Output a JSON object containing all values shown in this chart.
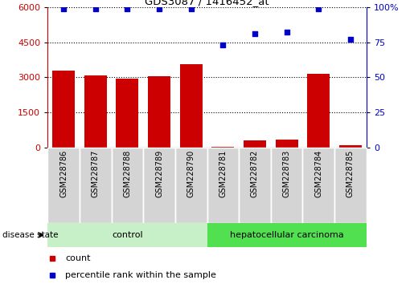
{
  "title": "GDS3087 / 1416452_at",
  "samples": [
    "GSM228786",
    "GSM228787",
    "GSM228788",
    "GSM228789",
    "GSM228790",
    "GSM228781",
    "GSM228782",
    "GSM228783",
    "GSM228784",
    "GSM228785"
  ],
  "counts": [
    3300,
    3100,
    2950,
    3050,
    3550,
    30,
    300,
    350,
    3150,
    100
  ],
  "percentiles": [
    99,
    99,
    99,
    99,
    99,
    73,
    81,
    82,
    99,
    77
  ],
  "bar_color": "#cc0000",
  "dot_color": "#0000cc",
  "ylim_left": [
    0,
    6000
  ],
  "ylim_right": [
    0,
    100
  ],
  "yticks_left": [
    0,
    1500,
    3000,
    4500,
    6000
  ],
  "yticks_right": [
    0,
    25,
    50,
    75,
    100
  ],
  "groups": [
    {
      "label": "control",
      "indices": [
        0,
        1,
        2,
        3,
        4
      ],
      "color": "#c8f0c8"
    },
    {
      "label": "hepatocellular carcinoma",
      "indices": [
        5,
        6,
        7,
        8,
        9
      ],
      "color": "#50e050"
    }
  ],
  "disease_state_label": "disease state",
  "legend_count_label": "count",
  "legend_percentile_label": "percentile rank within the sample",
  "background_color": "#ffffff",
  "plot_bg_color": "#ffffff",
  "grid_color": "#000000",
  "tick_label_bg": "#d4d4d4"
}
